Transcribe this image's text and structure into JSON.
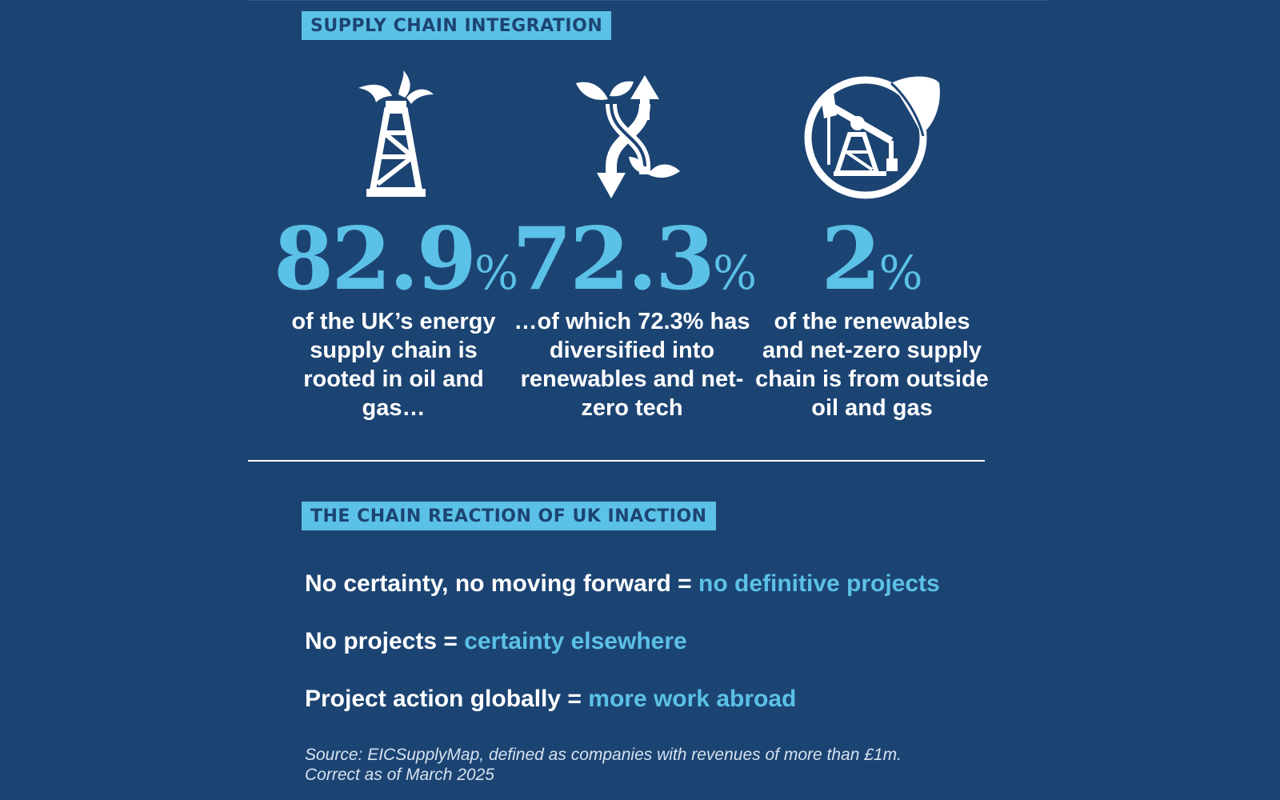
{
  "section1": {
    "label": "SUPPLY CHAIN INTEGRATION"
  },
  "stats": [
    {
      "value": "82.9",
      "unit": "%",
      "text": "of the UK’s energy supply chain is rooted in oil and gas…",
      "icon": "oil-rig-icon"
    },
    {
      "value": "72.3",
      "unit": "%",
      "text": "…of which 72.3% has diversified into renewables and net-zero tech",
      "icon": "diversify-arrows-leaves-icon"
    },
    {
      "value": "2",
      "unit": "%",
      "text": "of the renewables and net-zero supply chain is from outside oil and gas",
      "icon": "pumpjack-leaf-icon"
    }
  ],
  "section2": {
    "label": "THE CHAIN REACTION OF UK INACTION"
  },
  "equations": [
    {
      "lhs": "No certainty, no moving forward = ",
      "rhs": "no definitive projects"
    },
    {
      "lhs": "No projects = ",
      "rhs": "certainty elsewhere"
    },
    {
      "lhs": "Project action globally = ",
      "rhs": "more work abroad"
    }
  ],
  "source": {
    "line1": "Source: EICSupplyMap, defined as companies with revenues of more than £1m.",
    "line2": "Correct as of March 2025"
  },
  "colors": {
    "background": "#1c4473",
    "accent": "#5cc1e6",
    "text": "#ffffff"
  }
}
